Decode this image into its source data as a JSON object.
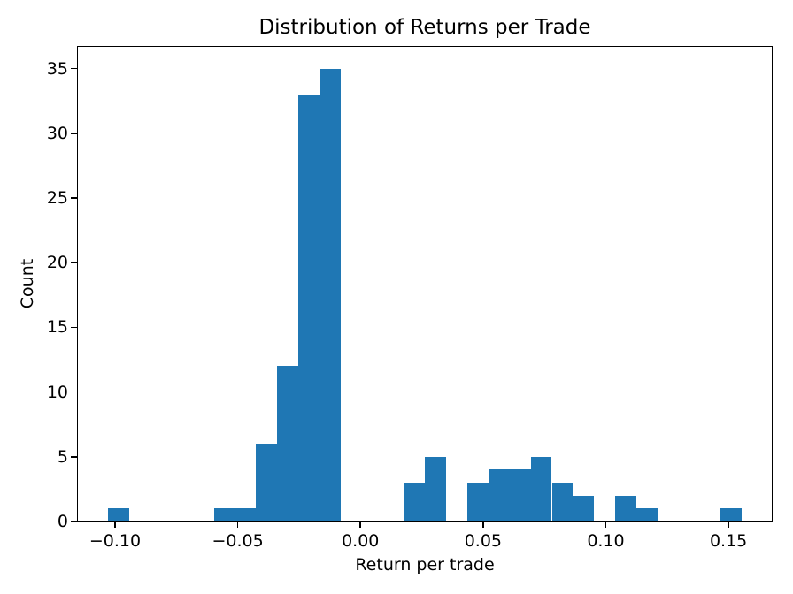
{
  "chart_data": {
    "type": "bar",
    "subtype": "histogram",
    "title": "Distribution of Returns per Trade",
    "xlabel": "Return per trade",
    "ylabel": "Count",
    "bar_color": "#1f77b4",
    "text_color": "#000000",
    "bin_start": -0.1028,
    "bin_width": 0.00861,
    "counts": [
      1,
      0,
      0,
      0,
      0,
      1,
      1,
      6,
      12,
      33,
      35,
      0,
      0,
      0,
      3,
      5,
      0,
      3,
      4,
      4,
      5,
      3,
      2,
      0,
      2,
      1,
      0,
      0,
      0,
      1
    ],
    "xlim": [
      -0.1155,
      0.168
    ],
    "ylim": [
      0,
      36.75
    ],
    "x_ticks": [
      -0.1,
      -0.05,
      0.0,
      0.05,
      0.1,
      0.15
    ],
    "x_tick_labels": [
      "−0.10",
      "−0.05",
      "0.00",
      "0.05",
      "0.10",
      "0.15"
    ],
    "y_ticks": [
      0,
      5,
      10,
      15,
      20,
      25,
      30,
      35
    ],
    "y_tick_labels": [
      "0",
      "5",
      "10",
      "15",
      "20",
      "25",
      "30",
      "35"
    ],
    "grid": false,
    "legend_position": "none"
  }
}
